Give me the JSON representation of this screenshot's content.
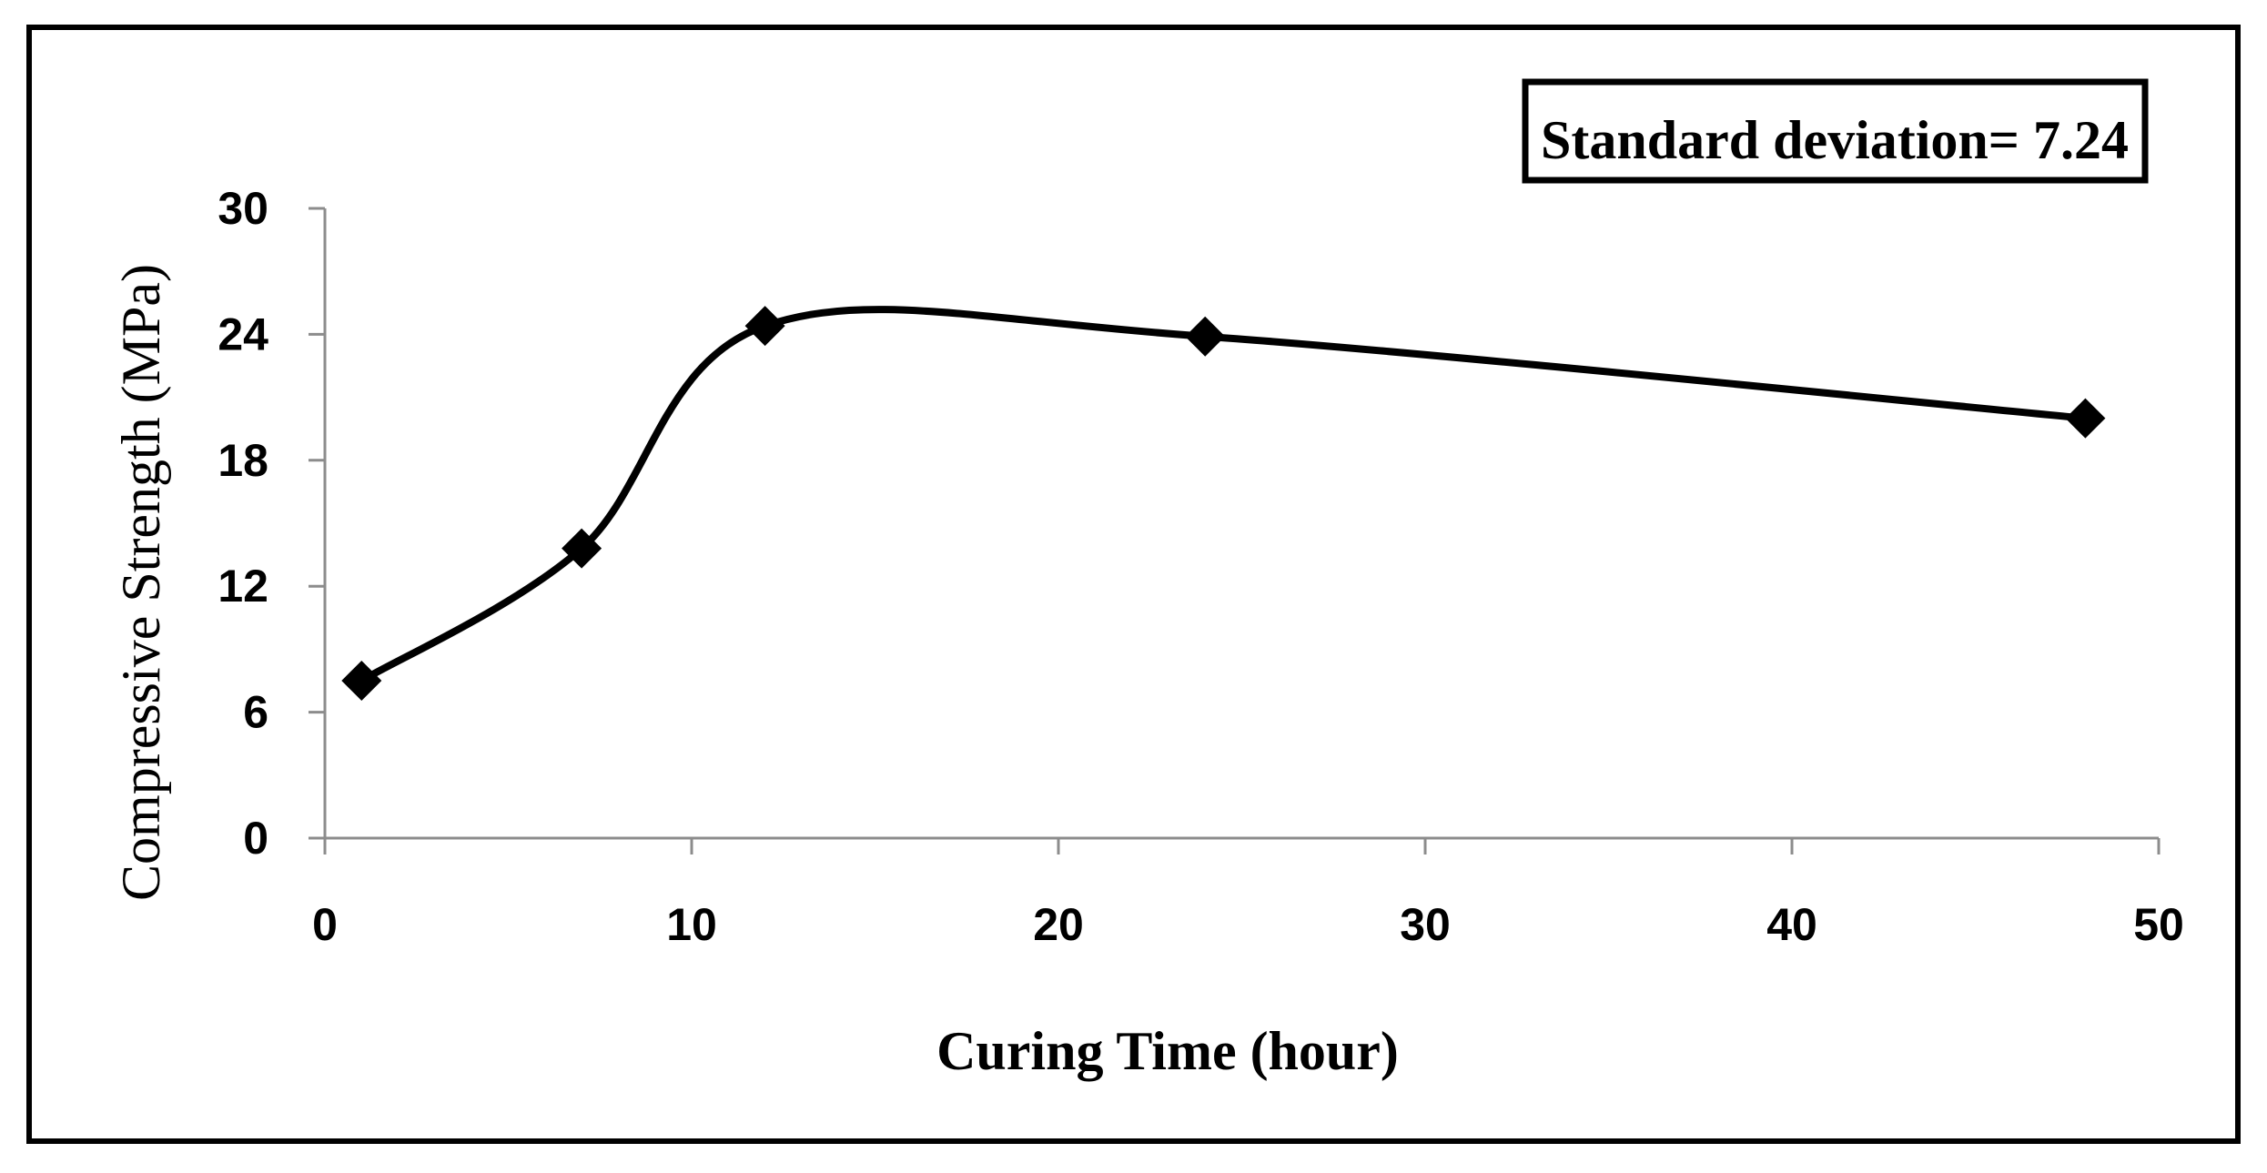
{
  "chart_data": {
    "type": "line",
    "smoothed": true,
    "title": "",
    "xlabel": "Curing Time (hour)",
    "ylabel": "Compressive Strength (MPa)",
    "xlim": [
      0,
      50
    ],
    "ylim": [
      0,
      30
    ],
    "x_ticks": [
      0,
      10,
      20,
      30,
      40,
      50
    ],
    "x_tick_labels": [
      "0",
      "10",
      "20",
      "30",
      "40",
      "50"
    ],
    "y_ticks": [
      0,
      6,
      12,
      18,
      24,
      30
    ],
    "y_tick_labels": [
      "0",
      "6",
      "12",
      "18",
      "24",
      "30"
    ],
    "grid": false,
    "legend": "none",
    "annotation": "Standard deviation= 7.24",
    "series": [
      {
        "name": "Compressive Strength",
        "marker": "diamond",
        "color": "#000000",
        "x": [
          1,
          7,
          12,
          24,
          48
        ],
        "y": [
          7.5,
          13.8,
          24.4,
          23.9,
          20.0
        ]
      }
    ]
  }
}
